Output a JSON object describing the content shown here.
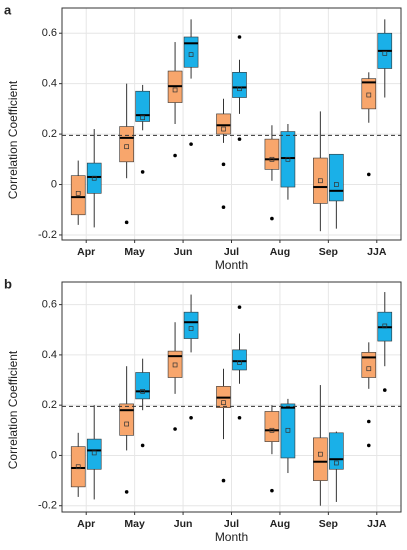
{
  "y_title": "Correlation Coefficient",
  "chart_data": [
    {
      "type": "box",
      "label": "a",
      "x_title": "Month",
      "categories": [
        "Apr",
        "May",
        "Jun",
        "Jul",
        "Aug",
        "Sep",
        "JJA"
      ],
      "ylim": [
        -0.22,
        0.7
      ],
      "yticks": [
        -0.2,
        0,
        0.2,
        0.4,
        0.6
      ],
      "grid": true,
      "reference_line": 0.195,
      "series": [
        {
          "color": "#f8a66c",
          "values": [
            {
              "whislo": -0.16,
              "q1": -0.12,
              "med": -0.05,
              "q3": 0.035,
              "whishi": 0.095,
              "mean": -0.035,
              "fliers": []
            },
            {
              "whislo": 0.025,
              "q1": 0.09,
              "med": 0.185,
              "q3": 0.23,
              "whishi": 0.4,
              "mean": 0.15,
              "fliers": [
                -0.15
              ]
            },
            {
              "whislo": 0.24,
              "q1": 0.325,
              "med": 0.39,
              "q3": 0.45,
              "whishi": 0.565,
              "mean": 0.375,
              "fliers": [
                0.115
              ]
            },
            {
              "whislo": 0.165,
              "q1": 0.2,
              "med": 0.235,
              "q3": 0.28,
              "whishi": 0.34,
              "mean": 0.22,
              "fliers": [
                0.08,
                -0.09
              ]
            },
            {
              "whislo": 0.015,
              "q1": 0.06,
              "med": 0.1,
              "q3": 0.18,
              "whishi": 0.235,
              "mean": 0.1,
              "fliers": [
                -0.135
              ]
            },
            {
              "whislo": -0.185,
              "q1": -0.075,
              "med": -0.01,
              "q3": 0.105,
              "whishi": 0.29,
              "mean": 0.015,
              "fliers": []
            },
            {
              "whislo": 0.245,
              "q1": 0.3,
              "med": 0.405,
              "q3": 0.42,
              "whishi": 0.445,
              "mean": 0.355,
              "fliers": [
                0.04
              ]
            }
          ]
        },
        {
          "color": "#1ab0e8",
          "values": [
            {
              "whislo": -0.17,
              "q1": -0.035,
              "med": 0.03,
              "q3": 0.085,
              "whishi": 0.22,
              "mean": 0.025,
              "fliers": []
            },
            {
              "whislo": 0.215,
              "q1": 0.25,
              "med": 0.275,
              "q3": 0.37,
              "whishi": 0.395,
              "mean": 0.265,
              "fliers": [
                0.05
              ]
            },
            {
              "whislo": 0.42,
              "q1": 0.465,
              "med": 0.56,
              "q3": 0.585,
              "whishi": 0.655,
              "mean": 0.515,
              "fliers": [
                0.16
              ]
            },
            {
              "whislo": 0.28,
              "q1": 0.345,
              "med": 0.385,
              "q3": 0.445,
              "whishi": 0.495,
              "mean": 0.38,
              "fliers": [
                0.585,
                0.18
              ]
            },
            {
              "whislo": -0.06,
              "q1": -0.01,
              "med": 0.105,
              "q3": 0.21,
              "whishi": 0.24,
              "mean": 0.1,
              "fliers": []
            },
            {
              "whislo": -0.175,
              "q1": -0.065,
              "med": -0.025,
              "q3": 0.12,
              "whishi": 0.12,
              "mean": 0.0,
              "fliers": []
            },
            {
              "whislo": 0.345,
              "q1": 0.46,
              "med": 0.53,
              "q3": 0.6,
              "whishi": 0.655,
              "mean": 0.52,
              "fliers": []
            }
          ]
        }
      ]
    },
    {
      "type": "box",
      "label": "b",
      "x_title": "Month",
      "categories": [
        "Apr",
        "May",
        "Jun",
        "Jul",
        "Aug",
        "Sep",
        "JJA"
      ],
      "ylim": [
        -0.225,
        0.69
      ],
      "yticks": [
        -0.2,
        0,
        0.2,
        0.4,
        0.6
      ],
      "grid": true,
      "reference_line": 0.195,
      "series": [
        {
          "color": "#f8a66c",
          "values": [
            {
              "whislo": -0.165,
              "q1": -0.125,
              "med": -0.05,
              "q3": 0.035,
              "whishi": 0.09,
              "mean": -0.045,
              "fliers": []
            },
            {
              "whislo": 0.02,
              "q1": 0.08,
              "med": 0.18,
              "q3": 0.205,
              "whishi": 0.355,
              "mean": 0.125,
              "fliers": [
                -0.145
              ]
            },
            {
              "whislo": 0.245,
              "q1": 0.31,
              "med": 0.395,
              "q3": 0.415,
              "whishi": 0.53,
              "mean": 0.36,
              "fliers": [
                0.105
              ]
            },
            {
              "whislo": 0.065,
              "q1": 0.19,
              "med": 0.23,
              "q3": 0.275,
              "whishi": 0.345,
              "mean": 0.21,
              "fliers": [
                -0.1
              ]
            },
            {
              "whislo": 0.005,
              "q1": 0.055,
              "med": 0.1,
              "q3": 0.175,
              "whishi": 0.2,
              "mean": 0.1,
              "fliers": [
                -0.14
              ]
            },
            {
              "whislo": -0.2,
              "q1": -0.1,
              "med": -0.025,
              "q3": 0.07,
              "whishi": 0.28,
              "mean": 0.005,
              "fliers": []
            },
            {
              "whislo": 0.265,
              "q1": 0.31,
              "med": 0.39,
              "q3": 0.41,
              "whishi": 0.45,
              "mean": 0.345,
              "fliers": [
                0.135,
                0.04
              ]
            }
          ]
        },
        {
          "color": "#1ab0e8",
          "values": [
            {
              "whislo": -0.175,
              "q1": -0.055,
              "med": 0.02,
              "q3": 0.065,
              "whishi": 0.2,
              "mean": 0.01,
              "fliers": []
            },
            {
              "whislo": 0.18,
              "q1": 0.225,
              "med": 0.255,
              "q3": 0.33,
              "whishi": 0.385,
              "mean": 0.255,
              "fliers": [
                0.04
              ]
            },
            {
              "whislo": 0.41,
              "q1": 0.465,
              "med": 0.53,
              "q3": 0.57,
              "whishi": 0.64,
              "mean": 0.505,
              "fliers": [
                0.15
              ]
            },
            {
              "whislo": 0.285,
              "q1": 0.34,
              "med": 0.375,
              "q3": 0.42,
              "whishi": 0.485,
              "mean": 0.37,
              "fliers": [
                0.59,
                0.15
              ]
            },
            {
              "whislo": -0.07,
              "q1": -0.01,
              "med": 0.19,
              "q3": 0.205,
              "whishi": 0.225,
              "mean": 0.1,
              "fliers": []
            },
            {
              "whislo": -0.185,
              "q1": -0.055,
              "med": -0.015,
              "q3": 0.09,
              "whishi": 0.095,
              "mean": -0.03,
              "fliers": []
            },
            {
              "whislo": 0.355,
              "q1": 0.455,
              "med": 0.51,
              "q3": 0.57,
              "whishi": 0.65,
              "mean": 0.515,
              "fliers": [
                0.26
              ]
            }
          ]
        }
      ]
    }
  ]
}
